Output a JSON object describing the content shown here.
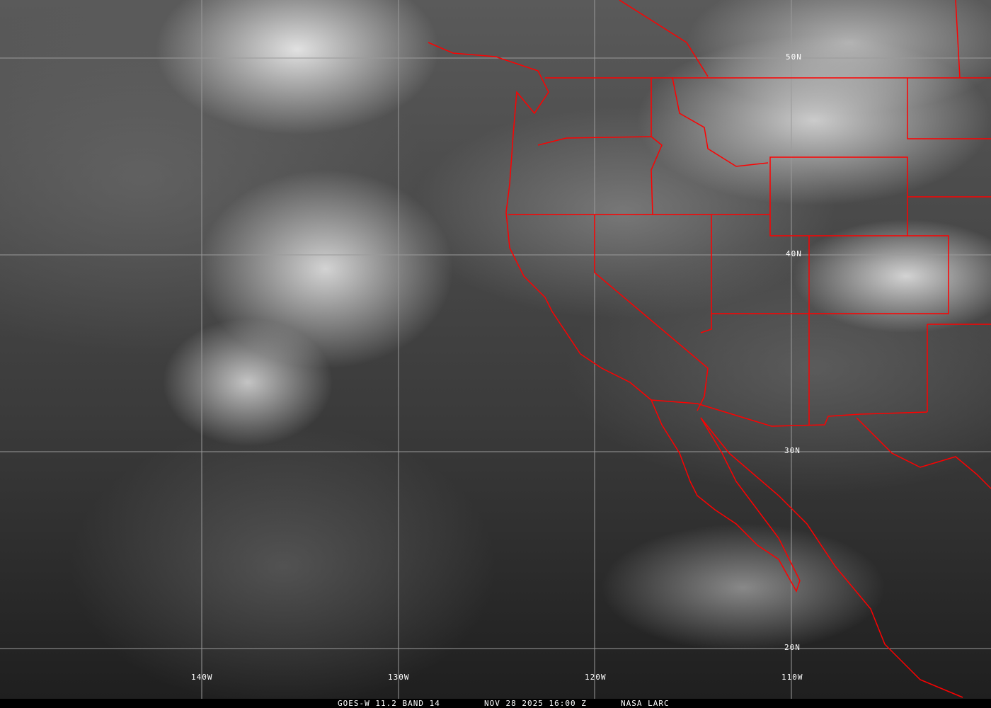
{
  "image": {
    "type": "satellite-infrared",
    "grid_latitudes": [
      "50N",
      "40N",
      "30N",
      "20N"
    ],
    "grid_longitudes": [
      "140W",
      "130W",
      "120W",
      "110W"
    ],
    "border_color": "#ff0000",
    "grid_color": "#9a9a9a"
  },
  "caption": {
    "satellite": "GOES-W 11.2 BAND 14",
    "datetime": "NOV 28 2025 16:00 Z",
    "source": "NASA LARC"
  }
}
